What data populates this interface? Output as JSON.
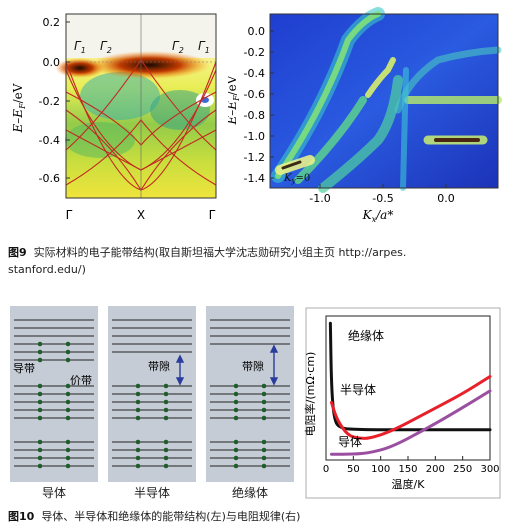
{
  "fig9": {
    "number": "图9",
    "caption": "实际材料的电子能带结构(取自斯坦福大学沈志勋研究小组主页 http://arpes.",
    "caption_cont": "stanford.edu/)",
    "left": {
      "ylabel": "E–E",
      "ylabel_sub": "F",
      "ylabel_unit": "/eV",
      "yticks": [
        "0.2",
        "0.0",
        "-0.2",
        "-0.4",
        "-0.6"
      ],
      "xticks": [
        "Γ",
        "X",
        "Γ"
      ],
      "tags": [
        "Γ",
        "Γ",
        "Γ",
        "Γ"
      ],
      "tag_subs": [
        "1",
        "2",
        "2",
        "1"
      ]
    },
    "right": {
      "ylabel": "E–E",
      "ylabel_sub": "F",
      "ylabel_unit": "/eV",
      "yticks": [
        "0.0",
        "-0.2",
        "-0.4",
        "-0.6",
        "-0.8",
        "-1.0",
        "-1.2",
        "-1.4"
      ],
      "xticks": [
        "-1.0",
        "-0.5",
        "0.0"
      ],
      "xlabel": "K",
      "xlabel_sub": "x",
      "xlabel_unit": "/a*",
      "annotation": "K",
      "annotation_sub": "y",
      "annotation_tail": "=0"
    }
  },
  "fig10": {
    "number": "图10",
    "caption": "导体、半导体和绝缘体的能带结构(左)与电阻规律(右)",
    "panels": {
      "conductor": "导体",
      "semiconductor": "半导体",
      "insulator": "绝缘体"
    },
    "labels": {
      "conduction_band": "导带",
      "valence_band": "价带",
      "gap_semi": "带隙",
      "gap_ins": "带隙"
    },
    "chart_data": {
      "type": "line",
      "xlabel": "温度/K",
      "ylabel": "电阻率/(mΩ·cm)",
      "xticks": [
        "0",
        "50",
        "100",
        "150",
        "200",
        "250",
        "300"
      ],
      "xlim": [
        0,
        300
      ],
      "series": [
        {
          "name": "绝缘体",
          "color": "#111111",
          "values": [
            [
              8,
              85
            ],
            [
              10,
              40
            ],
            [
              15,
              18
            ],
            [
              25,
              12
            ],
            [
              60,
              11
            ],
            [
              150,
              11
            ],
            [
              300,
              11
            ]
          ]
        },
        {
          "name": "半导体",
          "color": "#e8202a",
          "values": [
            [
              10,
              30
            ],
            [
              20,
              18
            ],
            [
              40,
              7
            ],
            [
              60,
              5
            ],
            [
              80,
              5
            ],
            [
              120,
              10
            ],
            [
              180,
              22
            ],
            [
              250,
              36
            ],
            [
              300,
              48
            ]
          ]
        },
        {
          "name": "导体",
          "color": "#9a4fa0",
          "values": [
            [
              10,
              -6
            ],
            [
              50,
              -6
            ],
            [
              80,
              -5
            ],
            [
              120,
              -1
            ],
            [
              180,
              11
            ],
            [
              240,
              24
            ],
            [
              300,
              38
            ]
          ]
        }
      ]
    }
  }
}
